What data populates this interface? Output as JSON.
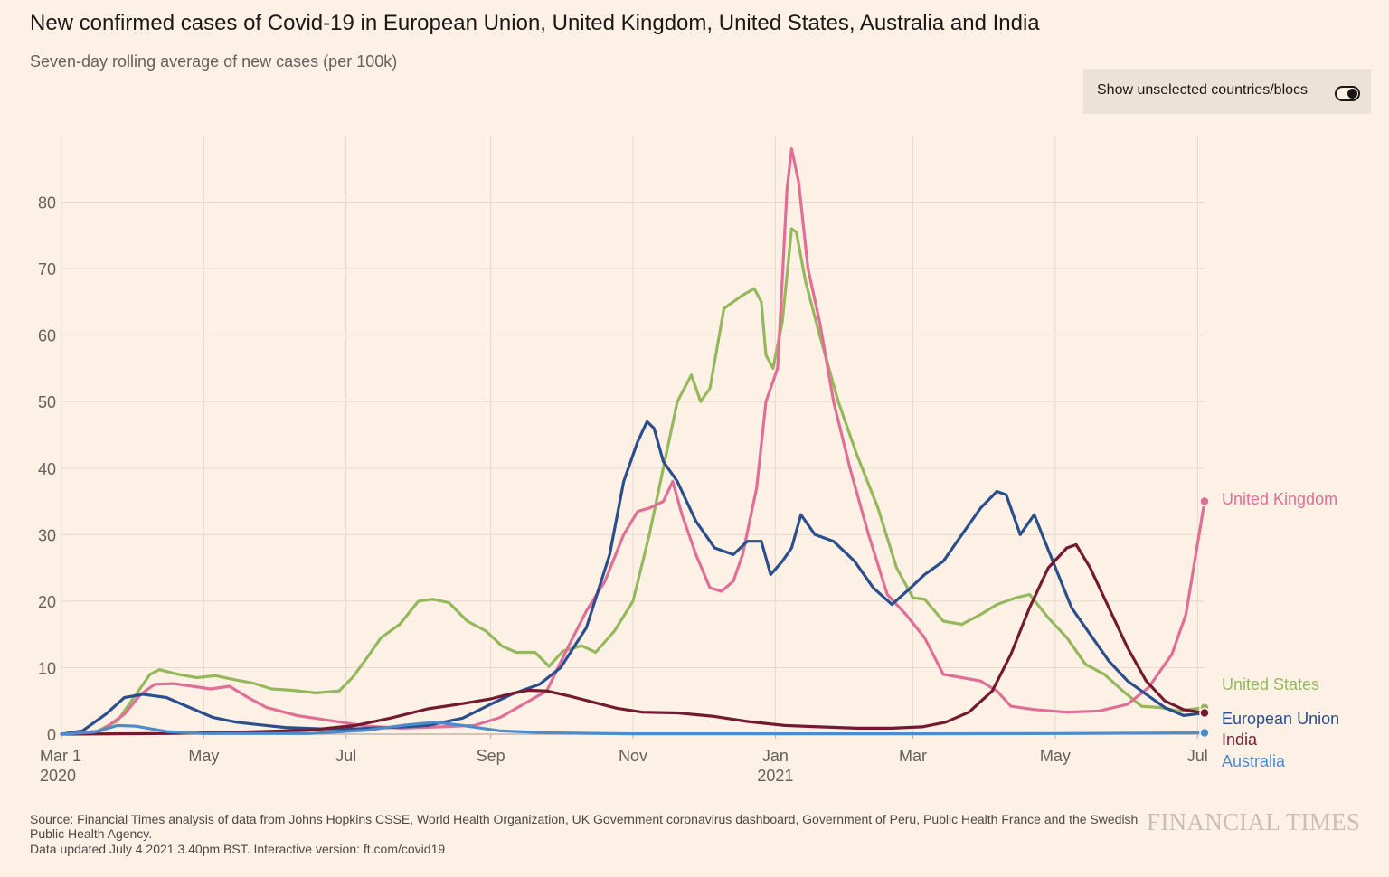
{
  "header": {
    "title": "New confirmed cases of Covid-19 in European Union, United Kingdom, United States, Australia and India",
    "subtitle": "Seven-day rolling average of new cases (per 100k)"
  },
  "toggle": {
    "label": "Show unselected countries/blocs",
    "state": "on"
  },
  "footer": {
    "source": "Source: Financial Times analysis of data from Johns Hopkins CSSE, World Health Organization, UK Government coronavirus dashboard, Government of Peru, Public Health France and the Swedish Public Health Agency.",
    "updated": "Data updated July 4 2021 3.40pm BST. Interactive version: ft.com/covid19",
    "logo": "FINANCIAL TIMES"
  },
  "chart_data": {
    "type": "line",
    "title": "New confirmed cases of Covid-19 in European Union, United Kingdom, United States, Australia and India",
    "subtitle": "Seven-day rolling average of new cases (per 100k)",
    "x_range": [
      "2020-03-01",
      "2021-07-04"
    ],
    "ylim": [
      0,
      90
    ],
    "yticks": [
      0,
      10,
      20,
      30,
      40,
      50,
      60,
      70,
      80
    ],
    "xticks": [
      {
        "date": "2020-03-01",
        "label": "Mar 1",
        "sublabel": "2020"
      },
      {
        "date": "2020-05-01",
        "label": "May",
        "sublabel": ""
      },
      {
        "date": "2020-07-01",
        "label": "Jul",
        "sublabel": ""
      },
      {
        "date": "2020-09-01",
        "label": "Sep",
        "sublabel": ""
      },
      {
        "date": "2020-11-01",
        "label": "Nov",
        "sublabel": ""
      },
      {
        "date": "2021-01-01",
        "label": "Jan",
        "sublabel": "2021"
      },
      {
        "date": "2021-03-01",
        "label": "Mar",
        "sublabel": ""
      },
      {
        "date": "2021-05-01",
        "label": "May",
        "sublabel": ""
      },
      {
        "date": "2021-07-01",
        "label": "Jul",
        "sublabel": ""
      }
    ],
    "grid": "vertical-and-horizontal",
    "legend": "direct labels at line ends (right)",
    "series": [
      {
        "name": "United States",
        "color": "#96b85c",
        "points": [
          [
            "2020-03-01",
            0
          ],
          [
            "2020-03-15",
            0.2
          ],
          [
            "2020-03-25",
            2
          ],
          [
            "2020-04-02",
            6
          ],
          [
            "2020-04-08",
            9
          ],
          [
            "2020-04-12",
            9.7
          ],
          [
            "2020-04-20",
            9
          ],
          [
            "2020-04-28",
            8.5
          ],
          [
            "2020-05-06",
            8.8
          ],
          [
            "2020-05-14",
            8.2
          ],
          [
            "2020-05-22",
            7.7
          ],
          [
            "2020-05-30",
            6.8
          ],
          [
            "2020-06-08",
            6.6
          ],
          [
            "2020-06-18",
            6.2
          ],
          [
            "2020-06-28",
            6.5
          ],
          [
            "2020-07-04",
            8.6
          ],
          [
            "2020-07-10",
            11.5
          ],
          [
            "2020-07-16",
            14.5
          ],
          [
            "2020-07-24",
            16.5
          ],
          [
            "2020-08-01",
            20
          ],
          [
            "2020-08-07",
            20.3
          ],
          [
            "2020-08-14",
            19.8
          ],
          [
            "2020-08-22",
            17
          ],
          [
            "2020-08-30",
            15.5
          ],
          [
            "2020-09-06",
            13.2
          ],
          [
            "2020-09-12",
            12.3
          ],
          [
            "2020-09-20",
            12.3
          ],
          [
            "2020-09-26",
            10.2
          ],
          [
            "2020-10-02",
            12.5
          ],
          [
            "2020-10-10",
            13.3
          ],
          [
            "2020-10-16",
            12.3
          ],
          [
            "2020-10-24",
            15.5
          ],
          [
            "2020-11-01",
            20
          ],
          [
            "2020-11-08",
            30
          ],
          [
            "2020-11-14",
            40
          ],
          [
            "2020-11-20",
            50
          ],
          [
            "2020-11-26",
            54
          ],
          [
            "2020-11-30",
            50
          ],
          [
            "2020-12-04",
            52
          ],
          [
            "2020-12-10",
            64
          ],
          [
            "2020-12-18",
            66
          ],
          [
            "2020-12-23",
            67
          ],
          [
            "2020-12-26",
            65
          ],
          [
            "2020-12-28",
            57
          ],
          [
            "2020-12-31",
            55
          ],
          [
            "2021-01-04",
            62
          ],
          [
            "2021-01-08",
            76
          ],
          [
            "2021-01-10",
            75.5
          ],
          [
            "2021-01-14",
            68
          ],
          [
            "2021-01-20",
            60
          ],
          [
            "2021-01-28",
            50
          ],
          [
            "2021-02-05",
            42
          ],
          [
            "2021-02-14",
            34
          ],
          [
            "2021-02-22",
            25
          ],
          [
            "2021-03-01",
            20.5
          ],
          [
            "2021-03-06",
            20.3
          ],
          [
            "2021-03-14",
            17
          ],
          [
            "2021-03-22",
            16.5
          ],
          [
            "2021-03-30",
            18
          ],
          [
            "2021-04-06",
            19.5
          ],
          [
            "2021-04-14",
            20.5
          ],
          [
            "2021-04-20",
            21
          ],
          [
            "2021-04-28",
            17.5
          ],
          [
            "2021-05-06",
            14.5
          ],
          [
            "2021-05-14",
            10.5
          ],
          [
            "2021-05-22",
            9
          ],
          [
            "2021-05-30",
            6.5
          ],
          [
            "2021-06-07",
            4.2
          ],
          [
            "2021-06-15",
            4
          ],
          [
            "2021-06-23",
            3.5
          ],
          [
            "2021-07-04",
            4
          ]
        ]
      },
      {
        "name": "United Kingdom",
        "color": "#e06e97",
        "points": [
          [
            "2020-03-01",
            0
          ],
          [
            "2020-03-18",
            0.5
          ],
          [
            "2020-03-28",
            3
          ],
          [
            "2020-04-04",
            6
          ],
          [
            "2020-04-10",
            7.5
          ],
          [
            "2020-04-18",
            7.6
          ],
          [
            "2020-04-26",
            7.2
          ],
          [
            "2020-05-04",
            6.8
          ],
          [
            "2020-05-12",
            7.2
          ],
          [
            "2020-05-20",
            5.5
          ],
          [
            "2020-05-28",
            4
          ],
          [
            "2020-06-10",
            2.8
          ],
          [
            "2020-06-25",
            2
          ],
          [
            "2020-07-10",
            1.2
          ],
          [
            "2020-07-25",
            0.9
          ],
          [
            "2020-08-10",
            1.1
          ],
          [
            "2020-08-25",
            1.3
          ],
          [
            "2020-09-05",
            2.5
          ],
          [
            "2020-09-15",
            4.5
          ],
          [
            "2020-09-25",
            6.5
          ],
          [
            "2020-10-04",
            13
          ],
          [
            "2020-10-12",
            18.5
          ],
          [
            "2020-10-20",
            23
          ],
          [
            "2020-10-28",
            30
          ],
          [
            "2020-11-03",
            33.5
          ],
          [
            "2020-11-08",
            34
          ],
          [
            "2020-11-14",
            35
          ],
          [
            "2020-11-18",
            38
          ],
          [
            "2020-11-22",
            33
          ],
          [
            "2020-11-28",
            27
          ],
          [
            "2020-12-04",
            22
          ],
          [
            "2020-12-09",
            21.5
          ],
          [
            "2020-12-14",
            23
          ],
          [
            "2020-12-18",
            27
          ],
          [
            "2020-12-24",
            37
          ],
          [
            "2020-12-28",
            50
          ],
          [
            "2021-01-02",
            55
          ],
          [
            "2021-01-06",
            82
          ],
          [
            "2021-01-08",
            88
          ],
          [
            "2021-01-11",
            83
          ],
          [
            "2021-01-15",
            70
          ],
          [
            "2021-01-20",
            62
          ],
          [
            "2021-01-26",
            50
          ],
          [
            "2021-02-02",
            40
          ],
          [
            "2021-02-10",
            30
          ],
          [
            "2021-02-18",
            21
          ],
          [
            "2021-02-26",
            18
          ],
          [
            "2021-03-06",
            14.5
          ],
          [
            "2021-03-14",
            9
          ],
          [
            "2021-03-22",
            8.5
          ],
          [
            "2021-03-30",
            8
          ],
          [
            "2021-04-06",
            6.5
          ],
          [
            "2021-04-12",
            4.2
          ],
          [
            "2021-04-22",
            3.7
          ],
          [
            "2021-05-06",
            3.3
          ],
          [
            "2021-05-20",
            3.5
          ],
          [
            "2021-06-01",
            4.5
          ],
          [
            "2021-06-10",
            7
          ],
          [
            "2021-06-20",
            12
          ],
          [
            "2021-06-26",
            18
          ],
          [
            "2021-07-04",
            35
          ]
        ]
      },
      {
        "name": "European Union",
        "color": "#2b4e8c",
        "points": [
          [
            "2020-03-01",
            0
          ],
          [
            "2020-03-10",
            0.5
          ],
          [
            "2020-03-20",
            3
          ],
          [
            "2020-03-28",
            5.5
          ],
          [
            "2020-04-05",
            6
          ],
          [
            "2020-04-15",
            5.5
          ],
          [
            "2020-04-25",
            4
          ],
          [
            "2020-05-05",
            2.5
          ],
          [
            "2020-05-15",
            1.8
          ],
          [
            "2020-05-25",
            1.4
          ],
          [
            "2020-06-05",
            1
          ],
          [
            "2020-06-20",
            0.8
          ],
          [
            "2020-07-05",
            0.8
          ],
          [
            "2020-07-20",
            1
          ],
          [
            "2020-08-05",
            1.3
          ],
          [
            "2020-08-20",
            2.4
          ],
          [
            "2020-09-01",
            4.5
          ],
          [
            "2020-09-10",
            6
          ],
          [
            "2020-09-22",
            7.5
          ],
          [
            "2020-10-01",
            10
          ],
          [
            "2020-10-12",
            16
          ],
          [
            "2020-10-22",
            27
          ],
          [
            "2020-10-28",
            38
          ],
          [
            "2020-11-03",
            44
          ],
          [
            "2020-11-07",
            47
          ],
          [
            "2020-11-10",
            46
          ],
          [
            "2020-11-14",
            41
          ],
          [
            "2020-11-20",
            38
          ],
          [
            "2020-11-28",
            32
          ],
          [
            "2020-12-06",
            28
          ],
          [
            "2020-12-14",
            27
          ],
          [
            "2020-12-20",
            29
          ],
          [
            "2020-12-26",
            29
          ],
          [
            "2020-12-30",
            24
          ],
          [
            "2021-01-04",
            26
          ],
          [
            "2021-01-08",
            28
          ],
          [
            "2021-01-12",
            33
          ],
          [
            "2021-01-18",
            30
          ],
          [
            "2021-01-26",
            29
          ],
          [
            "2021-02-04",
            26
          ],
          [
            "2021-02-12",
            22
          ],
          [
            "2021-02-20",
            19.5
          ],
          [
            "2021-02-28",
            22
          ],
          [
            "2021-03-06",
            24
          ],
          [
            "2021-03-14",
            26
          ],
          [
            "2021-03-22",
            30
          ],
          [
            "2021-03-30",
            34
          ],
          [
            "2021-04-06",
            36.5
          ],
          [
            "2021-04-10",
            36
          ],
          [
            "2021-04-16",
            30
          ],
          [
            "2021-04-22",
            33
          ],
          [
            "2021-04-30",
            26
          ],
          [
            "2021-05-08",
            19
          ],
          [
            "2021-05-16",
            15
          ],
          [
            "2021-05-24",
            11
          ],
          [
            "2021-06-01",
            8
          ],
          [
            "2021-06-09",
            6
          ],
          [
            "2021-06-17",
            4
          ],
          [
            "2021-06-25",
            2.8
          ],
          [
            "2021-07-04",
            3.2
          ]
        ]
      },
      {
        "name": "India",
        "color": "#731a30",
        "points": [
          [
            "2020-03-01",
            0
          ],
          [
            "2020-04-15",
            0.1
          ],
          [
            "2020-05-15",
            0.3
          ],
          [
            "2020-06-15",
            0.6
          ],
          [
            "2020-07-05",
            1.3
          ],
          [
            "2020-07-20",
            2.4
          ],
          [
            "2020-08-05",
            3.8
          ],
          [
            "2020-08-20",
            4.6
          ],
          [
            "2020-09-01",
            5.3
          ],
          [
            "2020-09-10",
            6.1
          ],
          [
            "2020-09-17",
            6.6
          ],
          [
            "2020-09-25",
            6.5
          ],
          [
            "2020-10-05",
            5.7
          ],
          [
            "2020-10-15",
            4.8
          ],
          [
            "2020-10-25",
            3.9
          ],
          [
            "2020-11-05",
            3.3
          ],
          [
            "2020-11-20",
            3.2
          ],
          [
            "2020-12-05",
            2.7
          ],
          [
            "2020-12-20",
            1.9
          ],
          [
            "2021-01-05",
            1.3
          ],
          [
            "2021-01-20",
            1.1
          ],
          [
            "2021-02-05",
            0.9
          ],
          [
            "2021-02-20",
            0.9
          ],
          [
            "2021-03-05",
            1.1
          ],
          [
            "2021-03-15",
            1.8
          ],
          [
            "2021-03-25",
            3.3
          ],
          [
            "2021-04-04",
            6.5
          ],
          [
            "2021-04-12",
            12
          ],
          [
            "2021-04-20",
            19
          ],
          [
            "2021-04-28",
            25
          ],
          [
            "2021-05-06",
            28
          ],
          [
            "2021-05-10",
            28.5
          ],
          [
            "2021-05-16",
            25
          ],
          [
            "2021-05-24",
            19
          ],
          [
            "2021-06-01",
            13
          ],
          [
            "2021-06-09",
            8
          ],
          [
            "2021-06-17",
            5
          ],
          [
            "2021-06-25",
            3.7
          ],
          [
            "2021-07-04",
            3.2
          ]
        ]
      },
      {
        "name": "Australia",
        "color": "#4c8ccc",
        "points": [
          [
            "2020-03-01",
            0
          ],
          [
            "2020-03-15",
            0.3
          ],
          [
            "2020-03-25",
            1.3
          ],
          [
            "2020-04-02",
            1.2
          ],
          [
            "2020-04-15",
            0.4
          ],
          [
            "2020-05-01",
            0.1
          ],
          [
            "2020-06-15",
            0.1
          ],
          [
            "2020-07-10",
            0.6
          ],
          [
            "2020-07-25",
            1.3
          ],
          [
            "2020-08-08",
            1.8
          ],
          [
            "2020-08-20",
            1.3
          ],
          [
            "2020-09-05",
            0.5
          ],
          [
            "2020-09-25",
            0.2
          ],
          [
            "2020-11-01",
            0.05
          ],
          [
            "2021-01-01",
            0.05
          ],
          [
            "2021-03-01",
            0.05
          ],
          [
            "2021-05-01",
            0.1
          ],
          [
            "2021-07-04",
            0.2
          ]
        ]
      }
    ]
  }
}
